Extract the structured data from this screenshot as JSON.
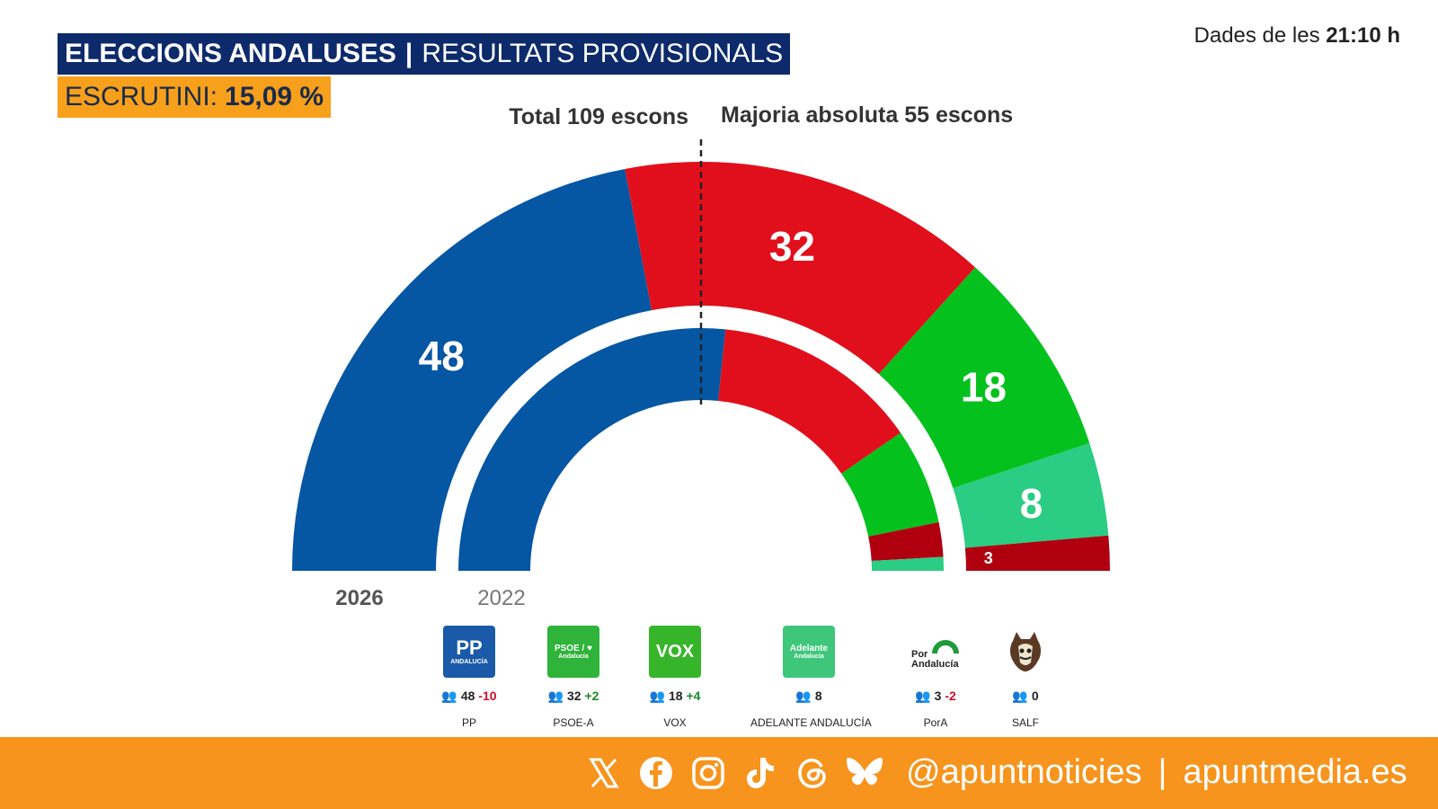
{
  "header": {
    "title_bold": "ELECCIONS ANDALUSES",
    "title_sep": "|",
    "title_rest": "RESULTATS PROVISIONALS",
    "scrutiny_label": "ESCRUTINI:",
    "scrutiny_value": "15,09 %",
    "time_prefix": "Dades de les",
    "time_value": "21:10 h"
  },
  "chart_data": {
    "type": "hemicycle",
    "total_label": "Total 109 escons",
    "majority_label": "Majoria absoluta 55 escons",
    "total_seats": 109,
    "majority": 55,
    "rings": [
      {
        "year": "2026",
        "parties": [
          {
            "name": "PP",
            "seats": 48
          },
          {
            "name": "PSOE-A",
            "seats": 32
          },
          {
            "name": "VOX",
            "seats": 18
          },
          {
            "name": "ADELANTE ANDALUCÍA",
            "seats": 8
          },
          {
            "name": "PorA",
            "seats": 3
          },
          {
            "name": "SALF",
            "seats": 0
          }
        ]
      },
      {
        "year": "2022",
        "parties": [
          {
            "name": "PP",
            "seats": 58
          },
          {
            "name": "PSOE-A",
            "seats": 30
          },
          {
            "name": "VOX",
            "seats": 14
          },
          {
            "name": "PorA",
            "seats": 5
          },
          {
            "name": "ADELANTE ANDALUCÍA",
            "seats": 2
          }
        ]
      }
    ],
    "colors": {
      "PP": "#0556a3",
      "PSOE-A": "#e10f1c",
      "VOX": "#05c11d",
      "ADELANTE ANDALUCÍA": "#2bcc83",
      "PorA": "#b00010",
      "SALF": "#7a4a2a"
    }
  },
  "legend": [
    {
      "name": "PP",
      "seats": "48",
      "change": "-10",
      "logo": "PP",
      "logo_sub": "ANDALUCÍA",
      "color": "#1a5aa8"
    },
    {
      "name": "PSOE-A",
      "seats": "32",
      "change": "+2",
      "logo": "PSOE / ♥",
      "logo_sub": "Andalucía",
      "color": "#2fb33a"
    },
    {
      "name": "VOX",
      "seats": "18",
      "change": "+4",
      "logo": "VOX",
      "logo_sub": "",
      "color": "#36b52b"
    },
    {
      "name": "ADELANTE ANDALUCÍA",
      "seats": "8",
      "change": "",
      "logo": "Adelante",
      "logo_sub": "Andalucía",
      "color": "#3ec77a"
    },
    {
      "name": "PorA",
      "seats": "3",
      "change": "-2",
      "logo": "Por",
      "logo_sub": "Andalucía",
      "color": "#ffffff"
    },
    {
      "name": "SALF",
      "seats": "0",
      "change": "",
      "logo": "",
      "logo_sub": "",
      "color": "#ffffff"
    }
  ],
  "footer": {
    "handle": "@apuntnoticies",
    "sep": "|",
    "site": "apuntmedia.es",
    "icons": [
      "x-icon",
      "facebook-icon",
      "instagram-icon",
      "tiktok-icon",
      "threads-icon",
      "bluesky-icon"
    ]
  }
}
